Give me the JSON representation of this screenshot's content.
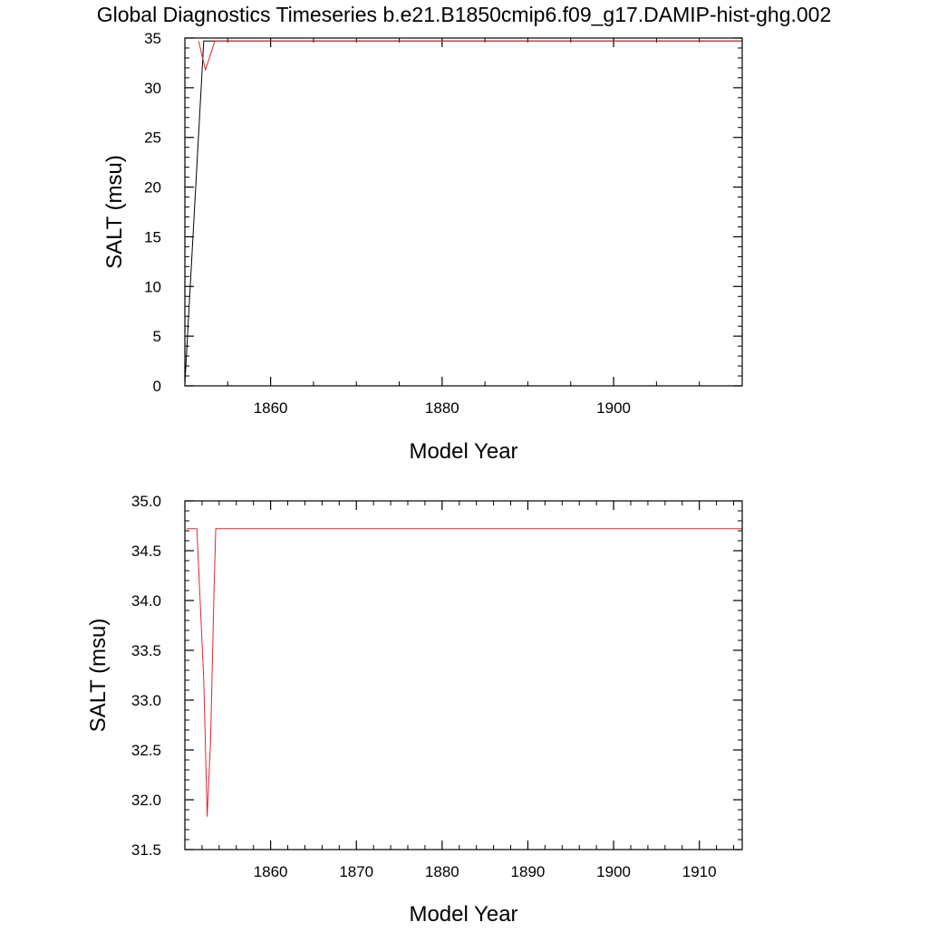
{
  "title": "Global Diagnostics Timeseries b.e21.B1850cmip6.f09_g17.DAMIP-hist-ghg.002",
  "colors": {
    "series_black": "#000000",
    "series_red": "#e8242d",
    "axes": "#000000"
  },
  "chart_data": [
    {
      "type": "line",
      "xlabel": "Model Year",
      "ylabel": "SALT (msu)",
      "xlim": [
        1850,
        1915
      ],
      "ylim": [
        0,
        35
      ],
      "x_major_ticks": [
        1860,
        1880,
        1900
      ],
      "x_minor_step": 5,
      "y_major_ticks": [
        0,
        5,
        10,
        15,
        20,
        25,
        30,
        35
      ],
      "y_tick_labels": [
        "0",
        "5",
        "10",
        "15",
        "20",
        "25",
        "30",
        "35"
      ],
      "y_minor_step": 1,
      "grid": false,
      "series": [
        {
          "color": "#000000",
          "x": [
            1850,
            1852.2,
            1852.5,
            1915
          ],
          "y": [
            0.2,
            34.7,
            34.7,
            34.7
          ]
        },
        {
          "color": "#e8242d",
          "x": [
            1851.6,
            1852.4,
            1853.5,
            1915
          ],
          "y": [
            34.7,
            31.8,
            34.7,
            34.7
          ]
        }
      ]
    },
    {
      "type": "line",
      "xlabel": "Model Year",
      "ylabel": "SALT (msu)",
      "xlim": [
        1850,
        1915
      ],
      "ylim": [
        31.5,
        35.0
      ],
      "x_major_ticks": [
        1860,
        1870,
        1880,
        1890,
        1900,
        1910
      ],
      "x_minor_step": 2,
      "y_major_ticks": [
        31.5,
        32.0,
        32.5,
        33.0,
        33.5,
        34.0,
        34.5,
        35.0
      ],
      "y_tick_labels": [
        "31.5",
        "32.0",
        "32.5",
        "33.0",
        "33.5",
        "34.0",
        "34.5",
        "35.0"
      ],
      "y_minor_step": 0.1,
      "grid": false,
      "series": [
        {
          "color": "#e8242d",
          "x": [
            1850.2,
            1850.9,
            1851.4,
            1852.2,
            1852.6,
            1853.0,
            1853.4,
            1853.6,
            1915
          ],
          "y": [
            34.72,
            34.72,
            34.72,
            33.2,
            31.83,
            32.6,
            34.1,
            34.72,
            34.72
          ]
        }
      ]
    }
  ]
}
